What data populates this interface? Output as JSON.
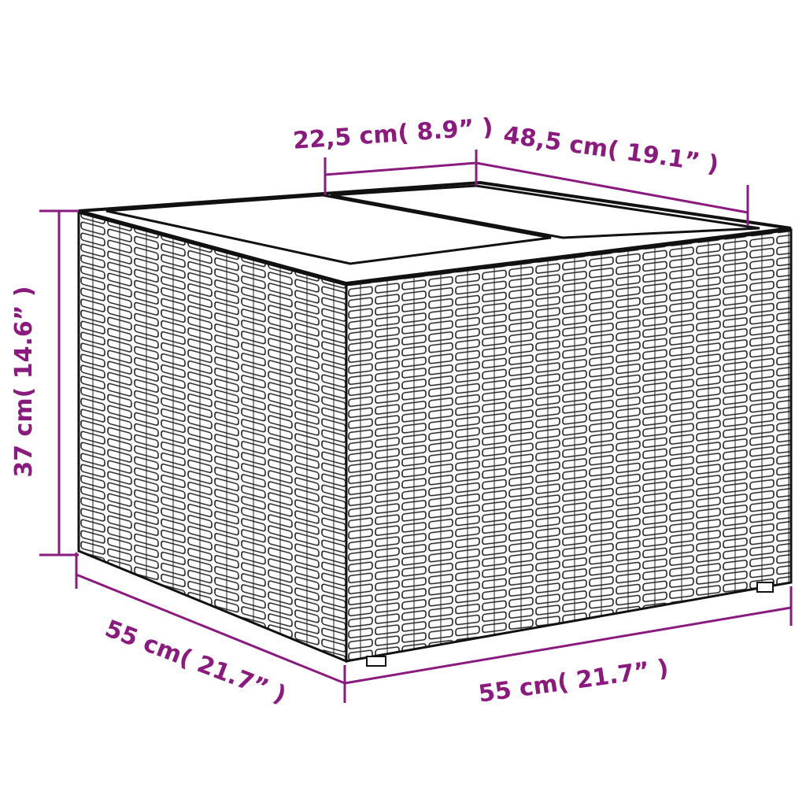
{
  "colors": {
    "dimension": "#8B1A7E",
    "outline": "#1a1a1a",
    "background": "#ffffff"
  },
  "dimensions": {
    "top_divider": "22,5 cm( 8.9”  )",
    "top_depth": "48,5 cm( 19.1”  )",
    "height": "37 cm( 14.6”  )",
    "depth": "55 cm( 21.7”  )",
    "width": "55 cm( 21.7”  )"
  }
}
